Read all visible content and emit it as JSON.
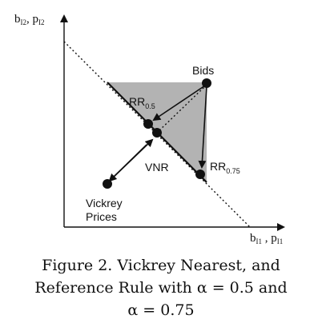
{
  "axes": {
    "y_label": "b",
    "y_label_sub1": "I2",
    "y_label_sep": ", p",
    "y_label_sub2": "I2",
    "x_label": "b",
    "x_label_sub1": "I1",
    "x_label_sep": " , p",
    "x_label_sub2": "I1"
  },
  "labels": {
    "bids": "Bids",
    "rr05_main": "RR",
    "rr05_sub": "0.5",
    "rr075_main": "RR",
    "rr075_sub": "0.75",
    "vnr": "VNR",
    "vickrey_line1": "Vickrey",
    "vickrey_line2": "Prices"
  },
  "colors": {
    "region_fill": "#b3b3b3",
    "ink": "#111111"
  },
  "caption": {
    "line1": "Figure 2. Vickrey Nearest, and",
    "line2": "Reference Rule with α = 0.5 and",
    "line3": "α = 0.75"
  }
}
